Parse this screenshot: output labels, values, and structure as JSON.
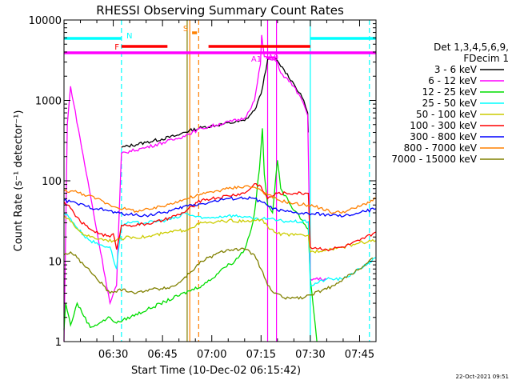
{
  "chart_data": {
    "type": "line",
    "title": "RHESSI Observing Summary Count Rates",
    "xlabel": "Start Time (10-Dec-02 06:15:42)",
    "ylabel": "Count Rate (s⁻¹ detector⁻¹)",
    "yscale": "log",
    "ylim": [
      1,
      10000
    ],
    "xlim_minutes": [
      0,
      95
    ],
    "x_tick_labels": [
      {
        "t": 15,
        "label": "06:30"
      },
      {
        "t": 30,
        "label": "06:45"
      },
      {
        "t": 45,
        "label": "07:00"
      },
      {
        "t": 60,
        "label": "07:15"
      },
      {
        "t": 75,
        "label": "07:30"
      },
      {
        "t": 90,
        "label": "07:45"
      }
    ],
    "y_tick_labels": [
      {
        "v": 1,
        "label": "1"
      },
      {
        "v": 10,
        "label": "10"
      },
      {
        "v": 100,
        "label": "100"
      },
      {
        "v": 1000,
        "label": "1000"
      },
      {
        "v": 10000,
        "label": "10000"
      }
    ],
    "legend_header": [
      "Det 1,3,4,5,6,9,",
      "FDecim 1"
    ],
    "series": [
      {
        "name": "3 - 6 keV",
        "color": "#000000",
        "points": [
          [
            17.5,
            260
          ],
          [
            25,
            300
          ],
          [
            35,
            370
          ],
          [
            36.3,
            400
          ],
          [
            42,
            460
          ],
          [
            55,
            560
          ],
          [
            58,
            750
          ],
          [
            60,
            1200
          ],
          [
            62,
            3200
          ],
          [
            64,
            3400
          ],
          [
            67,
            2400
          ],
          [
            70,
            1600
          ],
          [
            73,
            1000
          ],
          [
            74.2,
            700
          ],
          [
            74.4,
            400
          ]
        ]
      },
      {
        "name": "6 - 12 keV",
        "color": "#ff00ff",
        "points": [
          [
            0,
            1
          ],
          [
            1,
            500
          ],
          [
            2,
            1500
          ],
          [
            14,
            3
          ],
          [
            16,
            5
          ],
          [
            17.5,
            220
          ],
          [
            25,
            260
          ],
          [
            35,
            340
          ],
          [
            36.3,
            360
          ],
          [
            42,
            450
          ],
          [
            55,
            600
          ],
          [
            58,
            1000
          ],
          [
            59.8,
            2800
          ],
          [
            60.2,
            6500
          ],
          [
            61,
            3500
          ],
          [
            63,
            3200
          ],
          [
            65,
            3000
          ],
          [
            66,
            2200
          ],
          [
            70,
            1500
          ],
          [
            73,
            900
          ],
          [
            74.2,
            650
          ],
          [
            75,
            6
          ],
          [
            80,
            6
          ]
        ]
      },
      {
        "name": "12 - 25 keV",
        "color": "#00dd00",
        "points": [
          [
            0,
            1.4
          ],
          [
            0.5,
            3
          ],
          [
            2,
            1.6
          ],
          [
            4,
            3
          ],
          [
            8,
            1.5
          ],
          [
            14,
            2
          ],
          [
            16,
            1.7
          ],
          [
            42,
            5
          ],
          [
            45,
            6
          ],
          [
            48,
            8
          ],
          [
            52,
            10
          ],
          [
            55,
            14
          ],
          [
            57,
            25
          ],
          [
            58,
            40
          ],
          [
            59.5,
            140
          ],
          [
            60.4,
            450
          ],
          [
            61,
            120
          ],
          [
            62,
            50
          ],
          [
            63.5,
            40
          ],
          [
            65,
            180
          ],
          [
            66,
            80
          ],
          [
            69,
            50
          ],
          [
            71,
            40
          ],
          [
            74.4,
            25
          ],
          [
            75,
            6
          ],
          [
            77,
            1
          ]
        ]
      },
      {
        "name": "25 - 50 keV",
        "color": "#00ffff",
        "points": [
          [
            0,
            40
          ],
          [
            2,
            34
          ],
          [
            4,
            26
          ],
          [
            6,
            21
          ],
          [
            8,
            18
          ],
          [
            11,
            16
          ],
          [
            14,
            15
          ],
          [
            16,
            8
          ],
          [
            17.5,
            28
          ],
          [
            20,
            30
          ],
          [
            25,
            30
          ],
          [
            30,
            32
          ],
          [
            35,
            35
          ],
          [
            36.3,
            40
          ],
          [
            42,
            34
          ],
          [
            45,
            35
          ],
          [
            50,
            37
          ],
          [
            55,
            36
          ],
          [
            58,
            33
          ],
          [
            60,
            33
          ],
          [
            62,
            34
          ],
          [
            65,
            32
          ],
          [
            70,
            31
          ],
          [
            74.4,
            31
          ],
          [
            75,
            5
          ],
          [
            80,
            6
          ],
          [
            85,
            6
          ],
          [
            90,
            8
          ],
          [
            95,
            11
          ]
        ]
      },
      {
        "name": "50 - 100 keV",
        "color": "#cccc00",
        "points": [
          [
            0,
            37
          ],
          [
            1,
            34
          ],
          [
            3,
            28
          ],
          [
            5,
            23
          ],
          [
            8,
            20
          ],
          [
            11,
            19
          ],
          [
            15,
            18
          ],
          [
            17.5,
            19
          ],
          [
            20,
            20
          ],
          [
            25,
            20
          ],
          [
            30,
            22
          ],
          [
            35,
            24
          ],
          [
            36.3,
            24
          ],
          [
            42,
            30
          ],
          [
            45,
            30
          ],
          [
            50,
            32
          ],
          [
            55,
            31
          ],
          [
            58,
            32
          ],
          [
            60,
            33
          ],
          [
            62,
            27
          ],
          [
            65,
            22
          ],
          [
            70,
            21
          ],
          [
            74.4,
            21
          ],
          [
            75,
            13
          ],
          [
            80,
            14
          ],
          [
            85,
            15
          ],
          [
            90,
            17
          ],
          [
            95,
            18
          ]
        ]
      },
      {
        "name": "100 - 300 keV",
        "color": "#ff0000",
        "points": [
          [
            0,
            55
          ],
          [
            1,
            50
          ],
          [
            3,
            40
          ],
          [
            5,
            31
          ],
          [
            8,
            25
          ],
          [
            11,
            22
          ],
          [
            14,
            20
          ],
          [
            15,
            22
          ],
          [
            16,
            14
          ],
          [
            17.5,
            28
          ],
          [
            20,
            28
          ],
          [
            25,
            29
          ],
          [
            30,
            32
          ],
          [
            35,
            38
          ],
          [
            36.3,
            40
          ],
          [
            42,
            58
          ],
          [
            45,
            60
          ],
          [
            50,
            65
          ],
          [
            55,
            70
          ],
          [
            57,
            82
          ],
          [
            58,
            92
          ],
          [
            60,
            85
          ],
          [
            62,
            60
          ],
          [
            65,
            70
          ],
          [
            70,
            70
          ],
          [
            74.4,
            70
          ],
          [
            75,
            15
          ],
          [
            80,
            14
          ],
          [
            85,
            15
          ],
          [
            90,
            18
          ],
          [
            95,
            23
          ]
        ]
      },
      {
        "name": "300 - 800 keV",
        "color": "#0000ff",
        "points": [
          [
            0,
            57
          ],
          [
            2,
            55
          ],
          [
            4,
            52
          ],
          [
            7,
            48
          ],
          [
            10,
            45
          ],
          [
            13,
            43
          ],
          [
            16,
            40
          ],
          [
            20,
            38
          ],
          [
            25,
            37
          ],
          [
            30,
            40
          ],
          [
            35,
            45
          ],
          [
            36.3,
            48
          ],
          [
            42,
            52
          ],
          [
            45,
            55
          ],
          [
            50,
            60
          ],
          [
            55,
            61
          ],
          [
            58,
            60
          ],
          [
            60,
            55
          ],
          [
            62,
            49
          ],
          [
            65,
            43
          ],
          [
            70,
            40
          ],
          [
            74.4,
            39
          ],
          [
            80,
            38
          ],
          [
            85,
            36
          ],
          [
            90,
            40
          ],
          [
            95,
            45
          ]
        ]
      },
      {
        "name": "800 - 7000 keV",
        "color": "#ff8000",
        "points": [
          [
            0,
            75
          ],
          [
            3,
            74
          ],
          [
            6,
            68
          ],
          [
            10,
            60
          ],
          [
            14,
            50
          ],
          [
            18,
            45
          ],
          [
            22,
            42
          ],
          [
            26,
            44
          ],
          [
            30,
            48
          ],
          [
            34,
            55
          ],
          [
            36.3,
            58
          ],
          [
            42,
            68
          ],
          [
            45,
            73
          ],
          [
            50,
            80
          ],
          [
            55,
            86
          ],
          [
            58,
            83
          ],
          [
            60,
            76
          ],
          [
            62,
            67
          ],
          [
            65,
            58
          ],
          [
            70,
            52
          ],
          [
            74.4,
            50
          ],
          [
            78,
            46
          ],
          [
            82,
            40
          ],
          [
            86,
            42
          ],
          [
            90,
            48
          ],
          [
            95,
            60
          ]
        ]
      },
      {
        "name": "7000 - 15000 keV",
        "color": "#808000",
        "points": [
          [
            0,
            12
          ],
          [
            2,
            13
          ],
          [
            4,
            11
          ],
          [
            6,
            9
          ],
          [
            8,
            7.5
          ],
          [
            10,
            6
          ],
          [
            12,
            5
          ],
          [
            14,
            4
          ],
          [
            18,
            4.5
          ],
          [
            22,
            4
          ],
          [
            26,
            4.5
          ],
          [
            30,
            4.5
          ],
          [
            34,
            5
          ],
          [
            36.3,
            6
          ],
          [
            42,
            10
          ],
          [
            46,
            12
          ],
          [
            50,
            14
          ],
          [
            55,
            14
          ],
          [
            58,
            12
          ],
          [
            60,
            8
          ],
          [
            62,
            5
          ],
          [
            64,
            4
          ],
          [
            67,
            3.5
          ],
          [
            70,
            3.5
          ],
          [
            73,
            3.5
          ],
          [
            75,
            3.8
          ],
          [
            80,
            4.5
          ],
          [
            85,
            6
          ],
          [
            90,
            8
          ],
          [
            94,
            11
          ]
        ]
      }
    ],
    "flags": [
      {
        "label": "N",
        "color": "#00ffff",
        "segments": [
          [
            0,
            17.5
          ],
          [
            75,
            95
          ]
        ]
      },
      {
        "label": "F",
        "color": "#ff0000",
        "segments": [
          [
            17.5,
            31.5
          ],
          [
            44,
            75
          ]
        ]
      },
      {
        "label": "S",
        "color": "#ff8000",
        "segments": [
          [
            39,
            40.5
          ]
        ]
      },
      {
        "label": "A1",
        "color": "#ff00ff",
        "segments": [
          [
            0,
            95
          ]
        ]
      },
      {
        "label": "A0",
        "color": "#ff00ff",
        "segments": [
          [
            61.5,
            64.5
          ]
        ]
      }
    ],
    "vertical_markers": [
      {
        "t": 17.5,
        "color": "#00ffff",
        "style": "dashed"
      },
      {
        "t": 75,
        "color": "#00ffff",
        "style": "solid"
      },
      {
        "t": 93,
        "color": "#00ffff",
        "style": "dashed"
      },
      {
        "t": 38.3,
        "color": "#ff8000",
        "style": "solid"
      },
      {
        "t": 41,
        "color": "#ff8000",
        "style": "dashed"
      },
      {
        "t": 37.5,
        "color": "#808000",
        "style": "solid"
      },
      {
        "t": 62,
        "color": "#ff00ff",
        "style": "solid"
      },
      {
        "t": 64.7,
        "color": "#ff00ff",
        "style": "solid"
      }
    ]
  },
  "footer": {
    "timestamp": "22-Oct-2021 09:51"
  }
}
